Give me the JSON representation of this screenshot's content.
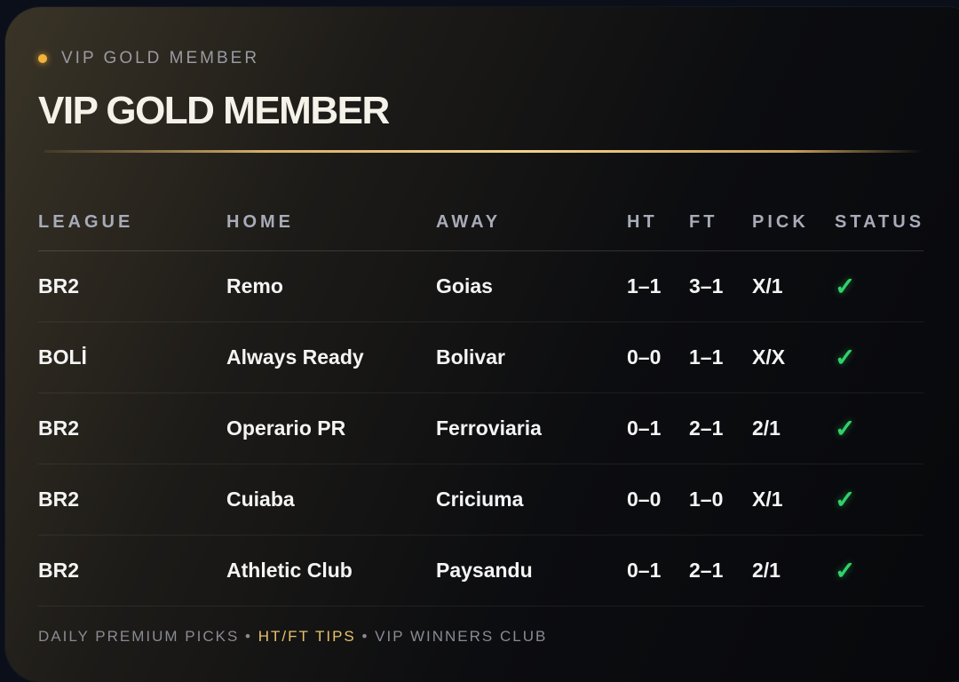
{
  "eyebrow": "VIP GOLD MEMBER",
  "title": "VIP GOLD MEMBER",
  "colors": {
    "gold": "#f3b43a",
    "success": "#2fd26a"
  },
  "table": {
    "headers": [
      "LEAGUE",
      "HOME",
      "AWAY",
      "HT",
      "FT",
      "PICK",
      "STATUS"
    ],
    "rows": [
      {
        "league": "BR2",
        "home": "Remo",
        "away": "Goias",
        "ht": "1–1",
        "ft": "3–1",
        "pick": "X/1",
        "status": "✓"
      },
      {
        "league": "BOLİ",
        "home": "Always Ready",
        "away": "Bolivar",
        "ht": "0–0",
        "ft": "1–1",
        "pick": "X/X",
        "status": "✓"
      },
      {
        "league": "BR2",
        "home": "Operario PR",
        "away": "Ferroviaria",
        "ht": "0–1",
        "ft": "2–1",
        "pick": "2/1",
        "status": "✓"
      },
      {
        "league": "BR2",
        "home": "Cuiaba",
        "away": "Criciuma",
        "ht": "0–0",
        "ft": "1–0",
        "pick": "X/1",
        "status": "✓"
      },
      {
        "league": "BR2",
        "home": "Athletic Club",
        "away": "Paysandu",
        "ht": "0–1",
        "ft": "2–1",
        "pick": "2/1",
        "status": "✓"
      }
    ]
  },
  "footer": {
    "part1": "DAILY PREMIUM PICKS",
    "sep": " • ",
    "part2": "HT/FT TIPS",
    "part3": "VIP WINNERS CLUB"
  }
}
